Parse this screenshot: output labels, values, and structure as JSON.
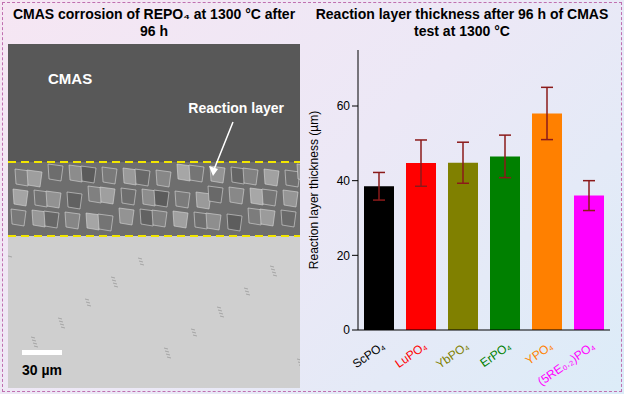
{
  "image_panel": {
    "title": "CMAS corrosion of REPO₄ at 1300 °C after 96 h",
    "region_label": "CMAS",
    "annotation": "Reaction layer",
    "scale_bar": "30 µm"
  },
  "chart_data": {
    "type": "bar",
    "title": "Reaction layer thickness after 96 h of CMAS test at 1300 °C",
    "y_label": "Reaction layer thickness (µm)",
    "categories": [
      "ScPO₄",
      "LuPO₄",
      "YbPO₄",
      "ErPO₄",
      "YPO₄",
      "(5RE₀.₂)PO₄"
    ],
    "values": [
      38.5,
      44.7,
      44.8,
      46.5,
      58.0,
      36.0
    ],
    "errors": [
      3.7,
      6.2,
      5.5,
      5.7,
      7.0,
      4.0
    ],
    "colors": [
      "#000000",
      "#ff0000",
      "#808000",
      "#008000",
      "#ff8000",
      "#ff00ff"
    ],
    "ylim": [
      0,
      75
    ],
    "yticks": [
      0,
      20,
      40,
      60
    ]
  }
}
